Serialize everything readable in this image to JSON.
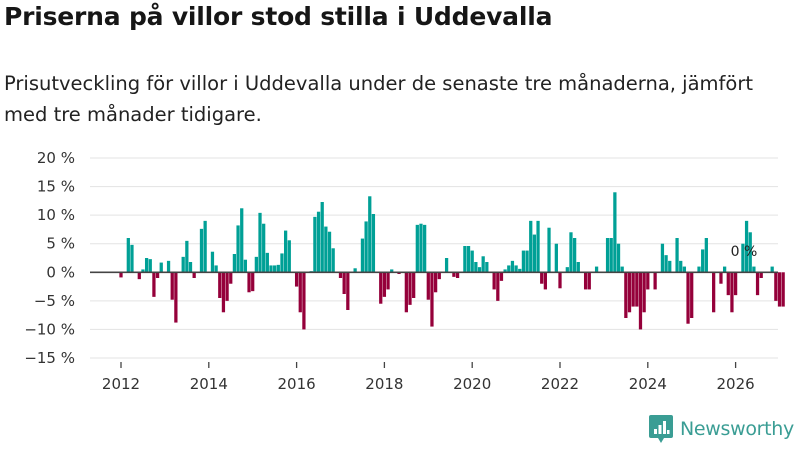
{
  "title": "Priserna på villor stod stilla i Uddevalla",
  "subtitle": "Prisutveckling för villor i Uddevalla under de senaste tre månaderna, jämfört med tre månader tidigare.",
  "brand": {
    "name": "Newsworthy",
    "color": "#3a9d94"
  },
  "colors": {
    "positive": "#00a096",
    "negative": "#95003a",
    "grid": "#e3e3e3",
    "zero_line": "#444444"
  },
  "chart_data": {
    "type": "bar",
    "title": "Priserna på villor stod stilla i Uddevalla",
    "xlabel": "",
    "ylabel": "",
    "ylim": [
      -15,
      20
    ],
    "yticks": [
      20,
      15,
      10,
      5,
      0,
      -5,
      -10,
      -15
    ],
    "ytick_labels": [
      "20 %",
      "15 %",
      "10 %",
      "5 %",
      "0 %",
      "−5 %",
      "−10 %",
      "−15 %"
    ],
    "xticks": [
      2012,
      2014,
      2016,
      2018,
      2020,
      2022,
      2024,
      2026
    ],
    "xtick_labels": [
      "2012",
      "2014",
      "2016",
      "2018",
      "2020",
      "2022",
      "2024",
      "2026"
    ],
    "grid": true,
    "start": "2012-01",
    "frequency": "monthly",
    "unit": "%",
    "annotation": {
      "label": "0 %",
      "value": 0
    },
    "values": [
      -0.9,
      0,
      6.0,
      4.8,
      0,
      -1.2,
      0.5,
      2.5,
      2.3,
      -4.3,
      -1.0,
      1.7,
      0,
      2.0,
      -4.8,
      -8.8,
      0,
      2.7,
      5.5,
      1.8,
      -1.0,
      0,
      7.6,
      9.0,
      0,
      3.6,
      1.2,
      -4.5,
      -7.0,
      -5.0,
      -2.0,
      3.2,
      8.2,
      11.2,
      2.2,
      -3.5,
      -3.3,
      2.7,
      10.4,
      8.5,
      3.4,
      1.2,
      1.2,
      1.3,
      3.3,
      7.3,
      5.6,
      0,
      -2.5,
      -7.0,
      -10.0,
      0,
      0.2,
      9.7,
      10.6,
      12.3,
      8.0,
      7.1,
      4.2,
      0,
      -1.0,
      -3.8,
      -6.6,
      0,
      0.7,
      0,
      5.9,
      8.9,
      13.3,
      10.2,
      0,
      -5.5,
      -4.3,
      -3.0,
      0.5,
      0,
      -0.3,
      0,
      -7.0,
      -5.7,
      -4.5,
      8.3,
      8.5,
      8.3,
      -4.8,
      -9.5,
      -3.5,
      -1.2,
      0,
      2.5,
      0,
      -0.8,
      -1.0,
      0,
      4.6,
      4.6,
      3.8,
      1.8,
      0.9,
      2.8,
      1.8,
      0,
      -3.0,
      -5.0,
      -1.5,
      0.5,
      1.2,
      2.0,
      1.2,
      0.6,
      3.8,
      3.8,
      9.0,
      6.6,
      9.0,
      -2.0,
      -3.0,
      7.8,
      0,
      5.0,
      -2.8,
      0,
      0.9,
      7.0,
      6.0,
      1.8,
      0,
      -3.0,
      -3.0,
      0,
      1.0,
      0,
      0,
      6.0,
      6.0,
      14.0,
      5.0,
      1.0,
      -8.0,
      -7.0,
      -6.0,
      -6.0,
      -10.0,
      -7.0,
      -3.0,
      0,
      -3.0,
      0,
      5.0,
      3.0,
      2.0,
      0,
      6.0,
      2.0,
      1.0,
      -9.0,
      -8.0,
      0,
      1.0,
      4.0,
      6.0,
      0,
      -7.0,
      0,
      -2.0,
      1.0,
      -4.0,
      -7.0,
      -4.0,
      0,
      5.0,
      9.0,
      7.0,
      1.0,
      -4.0,
      -1.0,
      0,
      0,
      1.0,
      -5.0,
      -6.0,
      -6.0
    ]
  }
}
